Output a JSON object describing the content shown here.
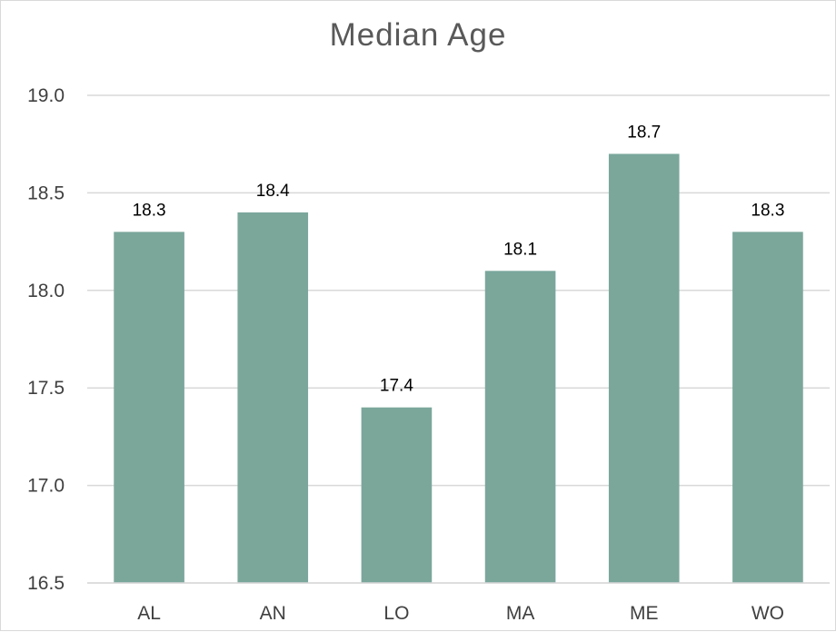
{
  "chart_data": {
    "type": "bar",
    "title": "Median Age",
    "xlabel": "",
    "ylabel": "",
    "categories": [
      "AL",
      "AN",
      "LO",
      "MA",
      "ME",
      "WO"
    ],
    "values": [
      18.3,
      18.4,
      17.4,
      18.1,
      18.7,
      18.3
    ],
    "data_labels": [
      "18.3",
      "18.4",
      "17.4",
      "18.1",
      "18.7",
      "18.3"
    ],
    "ylim": [
      16.5,
      19.0
    ],
    "yticks": [
      16.5,
      17.0,
      17.5,
      18.0,
      18.5,
      19.0
    ],
    "ytick_labels": [
      "16.5",
      "17.0",
      "17.5",
      "18.0",
      "18.5",
      "19.0"
    ],
    "grid": true,
    "legend": "none",
    "colors": {
      "bar": "#7ba79b",
      "grid": "#d9d9d9",
      "title": "#595959",
      "text": "#404040"
    }
  }
}
